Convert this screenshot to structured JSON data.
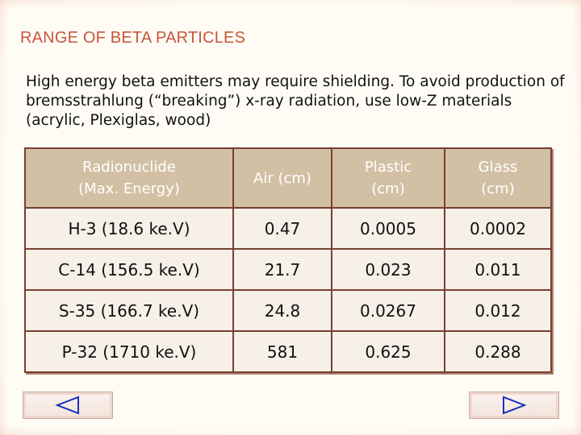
{
  "slide": {
    "title": "RANGE OF BETA PARTICLES",
    "intro": "High energy beta emitters may require shielding. To avoid production of bremsstrahlung (“breaking”) x-ray radiation, use low-Z materials (acrylic, Plexiglas, wood)"
  },
  "table": {
    "headers": {
      "radionuclide_line1": "Radionuclide",
      "radionuclide_line2": "(Max. Energy)",
      "air": "Air (cm)",
      "plastic_line1": "Plastic",
      "plastic_line2": "(cm)",
      "glass_line1": "Glass",
      "glass_line2": "(cm)"
    },
    "rows": [
      {
        "nuclide": "H-3 (18.6 ke.V)",
        "air": "0.47",
        "plastic": "0.0005",
        "glass": "0.0002"
      },
      {
        "nuclide": "C-14 (156.5 ke.V)",
        "air": "21.7",
        "plastic": "0.023",
        "glass": "0.011"
      },
      {
        "nuclide": "S-35 (166.7 ke.V)",
        "air": "24.8",
        "plastic": "0.0267",
        "glass": "0.012"
      },
      {
        "nuclide": "P-32 (1710 ke.V)",
        "air": "581",
        "plastic": "0.625",
        "glass": "0.288"
      }
    ]
  },
  "colors": {
    "title": "#c8553a",
    "header_bg": "#d2c0a4",
    "border": "#7a4030",
    "nav_icon": "#1a2fc0"
  },
  "nav": {
    "prev_icon": "triangle-left-icon",
    "next_icon": "triangle-right-icon"
  }
}
